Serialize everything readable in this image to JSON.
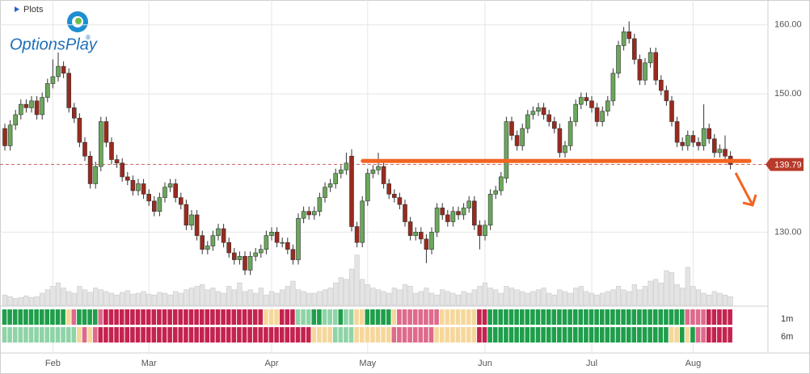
{
  "chart_data": {
    "type": "candlestick",
    "header": "Plots",
    "brand": "OptionsPlay",
    "brand_mark": "®",
    "categories": [
      null,
      null,
      null,
      null,
      null,
      null,
      null,
      null,
      null,
      "Feb",
      null,
      null,
      null,
      null,
      null,
      null,
      null,
      null,
      null,
      null,
      null,
      null,
      null,
      null,
      null,
      null,
      null,
      "Mar",
      null,
      null,
      null,
      null,
      null,
      null,
      null,
      null,
      null,
      null,
      null,
      null,
      null,
      null,
      null,
      null,
      null,
      null,
      null,
      null,
      null,
      null,
      "Apr",
      null,
      null,
      null,
      null,
      null,
      null,
      null,
      null,
      null,
      null,
      null,
      null,
      null,
      null,
      null,
      null,
      null,
      "May",
      null,
      null,
      null,
      null,
      null,
      null,
      null,
      null,
      null,
      null,
      null,
      null,
      null,
      null,
      null,
      null,
      null,
      null,
      null,
      null,
      null,
      "Jun",
      null,
      null,
      null,
      null,
      null,
      null,
      null,
      null,
      null,
      null,
      null,
      null,
      null,
      null,
      null,
      null,
      null,
      null,
      null,
      "Jul",
      null,
      null,
      null,
      null,
      null,
      null,
      null,
      null,
      null,
      null,
      null,
      null,
      null,
      null,
      null,
      null,
      null,
      null,
      "Aug",
      null,
      null,
      null,
      null,
      null,
      null,
      null
    ],
    "open": [
      145,
      142.5,
      145.5,
      147,
      148.5,
      148,
      149,
      147,
      149.5,
      151.5,
      152.5,
      154,
      153,
      148,
      146.5,
      143,
      141,
      137,
      139.5,
      146,
      143,
      140.5,
      140,
      138,
      137.5,
      136,
      137,
      135.5,
      134.5,
      133,
      135,
      136.5,
      137,
      135,
      134,
      131,
      132.5,
      129.5,
      127.5,
      128,
      129.5,
      130.5,
      128.5,
      127,
      126,
      126.5,
      124.5,
      126.5,
      127,
      127.5,
      129.5,
      130,
      128.5,
      128.5,
      127.5,
      126,
      132,
      133,
      132.5,
      133,
      135,
      136.5,
      137,
      138.5,
      139,
      141,
      130.8,
      128.5,
      134.5,
      138.5,
      139,
      139.5,
      137,
      135.5,
      135,
      134,
      131.5,
      129.5,
      130,
      129,
      127.5,
      130,
      133.5,
      132.5,
      131.5,
      133,
      132.5,
      133.5,
      134.5,
      131,
      129.5,
      131,
      135.5,
      136,
      137.8,
      146,
      144,
      142.5,
      145,
      147,
      147.5,
      148,
      147,
      146,
      145,
      141.5,
      142.5,
      146,
      148.5,
      149.5,
      149,
      148,
      146,
      147.5,
      149,
      153,
      157,
      159,
      158,
      155,
      152,
      154.5,
      156,
      152,
      150.5,
      149,
      146,
      143,
      142.5,
      144,
      143,
      142.5,
      145,
      143.5,
      141.5,
      142,
      141
    ],
    "high": [
      145.7,
      146.2,
      147.7,
      149.2,
      149.2,
      149.7,
      149.7,
      150.2,
      152.2,
      155,
      156,
      154.7,
      153.7,
      148.7,
      147.2,
      143.7,
      141.7,
      140.2,
      146.7,
      146.7,
      143.7,
      141.2,
      140.7,
      138.7,
      138.2,
      137.7,
      137.7,
      136.2,
      135.2,
      135.7,
      137.2,
      137.7,
      137.7,
      135.7,
      134.7,
      133.2,
      133.2,
      130.2,
      128.7,
      130.2,
      131.2,
      131.2,
      129.2,
      127.7,
      127.2,
      127.2,
      127.2,
      127.7,
      128.2,
      130.2,
      130.7,
      130.7,
      129.2,
      129.2,
      128.2,
      132.7,
      133.7,
      133.7,
      133.7,
      135.7,
      137.2,
      137.7,
      139.2,
      139.7,
      141.5,
      142,
      131.5,
      135.2,
      139.2,
      139.7,
      141.5,
      140.2,
      137.7,
      136.2,
      135.7,
      134.7,
      132.2,
      130.7,
      130.7,
      129.7,
      130.7,
      134.2,
      134.2,
      133.2,
      133.7,
      133.7,
      134.2,
      135.2,
      135.2,
      131.7,
      131.7,
      136.2,
      136.7,
      138.7,
      146.7,
      146.7,
      144.7,
      145.7,
      147.7,
      148.2,
      148.7,
      148.7,
      147.7,
      146.7,
      145.7,
      143.2,
      146.7,
      149.2,
      150.2,
      150.2,
      149.7,
      148.7,
      148.2,
      149.7,
      153.7,
      157.7,
      159.7,
      160.5,
      158.7,
      155.7,
      155.2,
      156.7,
      156.7,
      152.7,
      151.2,
      149.7,
      146.7,
      143.7,
      144.7,
      144.7,
      143.7,
      148.5,
      145.7,
      144.2,
      142.7,
      144,
      141.7
    ],
    "low": [
      141.8,
      141.8,
      144.8,
      146.3,
      147.3,
      147.3,
      146.3,
      146.3,
      148.8,
      150.8,
      151.8,
      152.3,
      147.3,
      145.8,
      142.3,
      140.3,
      136.3,
      136.3,
      138.8,
      142.3,
      139.8,
      139.3,
      137.3,
      136.8,
      135.3,
      135.3,
      134.8,
      133.8,
      132.3,
      132.3,
      134.3,
      135.8,
      134.3,
      133.3,
      130.3,
      130.3,
      128.8,
      126.8,
      126.8,
      127.3,
      128.8,
      127.8,
      126.3,
      125.3,
      125.3,
      123.8,
      123.8,
      125.8,
      126.3,
      126.8,
      128.8,
      127.8,
      127.8,
      126.8,
      125.3,
      125.3,
      131.3,
      131.8,
      131.8,
      132.3,
      134.3,
      135.8,
      136.3,
      137.8,
      138.3,
      130.1,
      127.8,
      127.8,
      133.8,
      137.8,
      138.3,
      136.3,
      134.8,
      134.3,
      133.3,
      130.8,
      128.8,
      128.8,
      128.3,
      125.5,
      126.8,
      129.3,
      131.8,
      130.8,
      130.8,
      131.8,
      131.8,
      132.8,
      130.3,
      127.5,
      128.8,
      130.3,
      134.8,
      135.3,
      137.1,
      143.3,
      141.8,
      141.8,
      144.3,
      146.3,
      146.8,
      146.3,
      145.3,
      144.3,
      140.8,
      140.8,
      141.8,
      145.3,
      147.8,
      148.3,
      147.3,
      145.3,
      145.3,
      146.8,
      148.3,
      152.3,
      156.3,
      157.3,
      154.3,
      151.3,
      151.3,
      153.8,
      151.3,
      149.8,
      148.3,
      145.3,
      142.3,
      141.8,
      141.8,
      142.3,
      141.8,
      141.8,
      142.8,
      140.8,
      140.8,
      140.3,
      139.1
    ],
    "close": [
      142.5,
      145.5,
      147,
      148.5,
      148,
      149,
      147,
      149.5,
      151.5,
      152.5,
      154,
      153,
      148,
      146.5,
      143,
      141,
      137,
      139.5,
      146,
      143,
      140.5,
      140,
      138,
      137.5,
      136,
      137,
      135.5,
      134.5,
      133,
      135,
      136.5,
      137,
      135,
      134,
      131,
      132.5,
      129.5,
      127.5,
      128,
      129.5,
      130.5,
      128.5,
      127,
      126,
      126.5,
      124.5,
      126.5,
      127,
      127.5,
      129.5,
      130,
      128.5,
      128.5,
      127.5,
      126,
      132,
      133,
      132.5,
      133,
      135,
      136.5,
      137,
      138.5,
      139,
      140,
      130.8,
      128.5,
      134.5,
      138.5,
      139,
      139.5,
      137,
      135.5,
      135,
      134,
      131.5,
      129.5,
      130,
      129,
      127.5,
      130,
      133.5,
      132.5,
      131.5,
      133,
      132.5,
      133.5,
      134.5,
      131,
      129.5,
      131,
      135.5,
      136,
      138,
      146,
      144,
      142.5,
      145,
      147,
      147.5,
      148,
      147,
      146,
      145,
      141.5,
      142.5,
      146,
      148.5,
      149.5,
      149,
      148,
      146,
      147.5,
      149,
      153,
      157,
      159,
      158,
      155,
      152,
      154.5,
      156,
      152,
      150.5,
      149,
      146,
      143,
      142.5,
      144,
      143,
      142.5,
      145,
      143.5,
      141.5,
      142,
      141,
      139.79
    ],
    "up_color": "#6aa85a",
    "down_color": "#9a2a1e",
    "volume": [
      12,
      10,
      8,
      9,
      11,
      9,
      10,
      14,
      18,
      22,
      26,
      20,
      16,
      14,
      22,
      18,
      15,
      20,
      18,
      16,
      14,
      12,
      15,
      17,
      13,
      14,
      16,
      13,
      12,
      15,
      14,
      12,
      16,
      14,
      18,
      20,
      22,
      24,
      18,
      20,
      16,
      14,
      22,
      18,
      26,
      16,
      18,
      14,
      20,
      12,
      16,
      14,
      18,
      22,
      28,
      18,
      16,
      14,
      14,
      16,
      18,
      20,
      26,
      32,
      30,
      42,
      58,
      30,
      24,
      20,
      18,
      16,
      14,
      20,
      18,
      24,
      22,
      14,
      16,
      20,
      14,
      12,
      18,
      16,
      14,
      12,
      16,
      14,
      18,
      22,
      26,
      20,
      18,
      14,
      22,
      20,
      18,
      16,
      14,
      16,
      18,
      20,
      14,
      12,
      18,
      16,
      14,
      20,
      22,
      16,
      14,
      12,
      14,
      16,
      18,
      22,
      18,
      16,
      24,
      18,
      22,
      28,
      30,
      26,
      40,
      38,
      24,
      20,
      44,
      22,
      18,
      14,
      12,
      16,
      14,
      12,
      10
    ],
    "volume_color": "#e4e4e4",
    "vlim": [
      0,
      70
    ],
    "ylim": [
      119.4,
      163.6
    ],
    "yticks": [
      {
        "value": 130,
        "label": "130.00"
      },
      {
        "value": 150,
        "label": "150.00"
      },
      {
        "value": 160,
        "label": "160.00"
      }
    ],
    "grid": true,
    "last_price": 139.79,
    "last_price_color": "#b83a2a",
    "support_level": 140.3,
    "support_color": "#f26522",
    "heatmap": {
      "palette": [
        "#1f9e4b",
        "#8fd3a7",
        "#f6d79b",
        "#de6a8c",
        "#c4234f"
      ],
      "rows": [
        {
          "name": "1m",
          "values": [
            0,
            0,
            0,
            0,
            0,
            0,
            0,
            0,
            0,
            0,
            0,
            0,
            2,
            3,
            0,
            0,
            0,
            0,
            3,
            4,
            4,
            4,
            4,
            4,
            4,
            4,
            4,
            4,
            4,
            4,
            4,
            4,
            4,
            4,
            4,
            4,
            4,
            4,
            4,
            4,
            4,
            4,
            4,
            4,
            4,
            4,
            4,
            4,
            4,
            2,
            2,
            2,
            4,
            4,
            4,
            1,
            1,
            1,
            0,
            0,
            1,
            1,
            1,
            0,
            1,
            1,
            2,
            2,
            0,
            0,
            0,
            0,
            0,
            2,
            3,
            3,
            3,
            3,
            3,
            3,
            3,
            3,
            2,
            2,
            2,
            2,
            2,
            2,
            2,
            4,
            4,
            0,
            0,
            0,
            0,
            0,
            0,
            0,
            0,
            0,
            0,
            0,
            0,
            0,
            0,
            0,
            0,
            0,
            0,
            0,
            0,
            0,
            0,
            0,
            0,
            0,
            0,
            0,
            0,
            0,
            0,
            0,
            0,
            0,
            0,
            0,
            0,
            0,
            3,
            3,
            3,
            3,
            4,
            4,
            4,
            4,
            4
          ]
        },
        {
          "name": "6m",
          "values": [
            1,
            1,
            1,
            1,
            1,
            1,
            1,
            1,
            1,
            1,
            1,
            1,
            1,
            1,
            2,
            3,
            2,
            3,
            4,
            4,
            4,
            4,
            4,
            4,
            4,
            4,
            4,
            4,
            4,
            4,
            4,
            4,
            4,
            4,
            4,
            4,
            4,
            4,
            4,
            4,
            4,
            4,
            4,
            4,
            4,
            4,
            4,
            4,
            4,
            4,
            4,
            4,
            4,
            4,
            4,
            4,
            4,
            4,
            2,
            2,
            2,
            2,
            1,
            1,
            1,
            1,
            2,
            2,
            2,
            2,
            2,
            2,
            2,
            3,
            3,
            3,
            3,
            3,
            3,
            3,
            3,
            2,
            2,
            2,
            2,
            2,
            2,
            2,
            2,
            4,
            4,
            0,
            0,
            0,
            0,
            0,
            0,
            0,
            0,
            0,
            0,
            0,
            0,
            0,
            0,
            0,
            0,
            0,
            0,
            0,
            0,
            0,
            0,
            0,
            0,
            0,
            0,
            0,
            0,
            0,
            0,
            0,
            0,
            0,
            0,
            2,
            2,
            0,
            2,
            0,
            3,
            3,
            4,
            4,
            4,
            4,
            4
          ]
        }
      ]
    }
  }
}
